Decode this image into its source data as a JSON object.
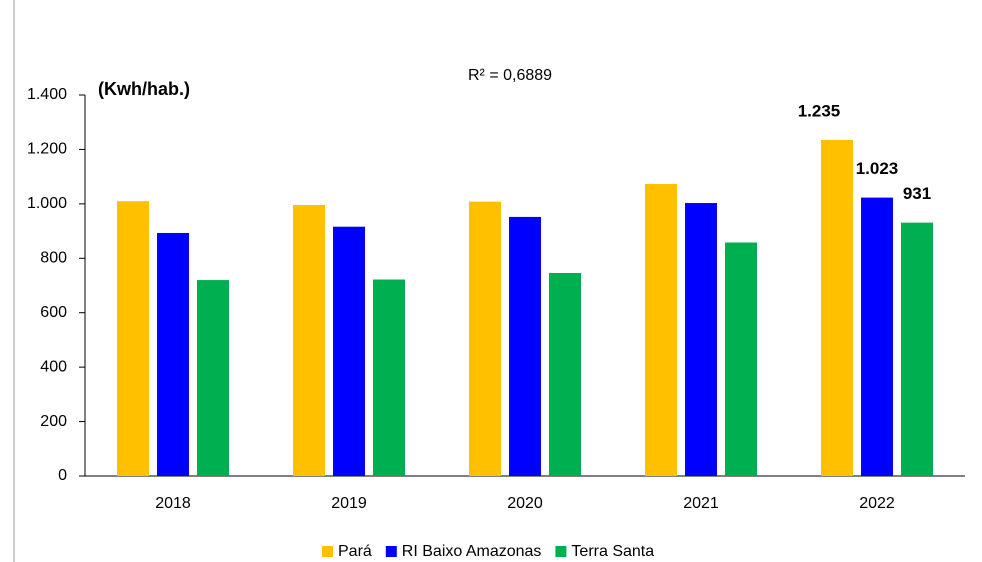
{
  "chart_data": {
    "type": "bar",
    "y_label": "(Kwh/hab.)",
    "annotation": "R² = 0,6889",
    "categories": [
      "2018",
      "2019",
      "2020",
      "2021",
      "2022"
    ],
    "series": [
      {
        "name": "Pará",
        "color": "#FFC000",
        "values": [
          1010,
          996,
          1008,
          1073,
          1235
        ],
        "value_labels": [
          null,
          null,
          null,
          null,
          "1.235"
        ]
      },
      {
        "name": "RI Baixo Amazonas",
        "color": "#0000FF",
        "values": [
          893,
          916,
          952,
          1003,
          1023
        ],
        "value_labels": [
          null,
          null,
          null,
          null,
          "1.023"
        ]
      },
      {
        "name": "Terra Santa",
        "color": "#00B050",
        "values": [
          720,
          722,
          746,
          858,
          931
        ],
        "value_labels": [
          null,
          null,
          null,
          null,
          "931"
        ]
      }
    ],
    "ylim": [
      0,
      1400
    ],
    "yticks": [
      0,
      200,
      400,
      600,
      800,
      {
        "value": 1000,
        "label": "1.000"
      },
      {
        "value": 1200,
        "label": "1.200"
      },
      {
        "value": 1400,
        "label": "1.400"
      }
    ],
    "legend": "bottom"
  }
}
